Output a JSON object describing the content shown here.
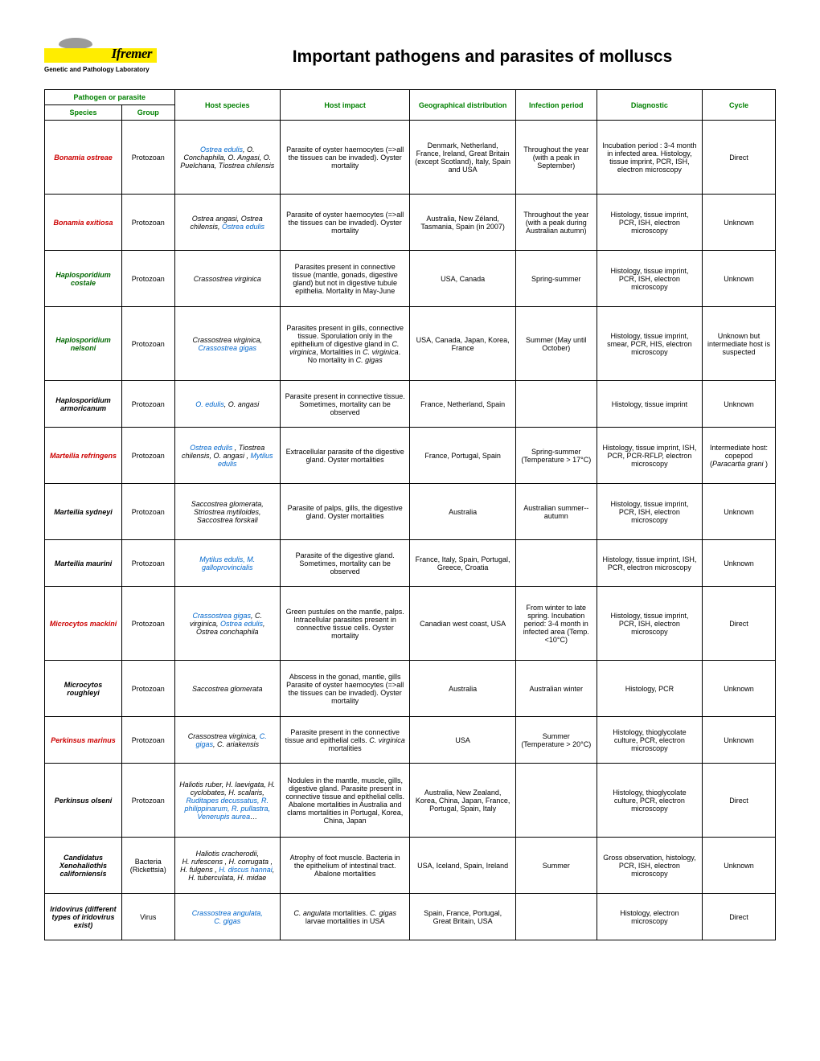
{
  "logo": {
    "brand": "Ifremer",
    "subline": "Genetic and Pathology Laboratory"
  },
  "title": "Important pathogens and parasites of molluscs",
  "headers": {
    "pathogen": "Pathogen or parasite",
    "species": "Species",
    "group": "Group",
    "host_species": "Host species",
    "host_impact": "Host impact",
    "geo": "Geographical distribution",
    "period": "Infection period",
    "diagnostic": "Diagnostic",
    "cycle": "Cycle"
  },
  "rows": [
    {
      "species": "Bonamia ostreae",
      "species_color": "red",
      "group": "Protozoan",
      "host_html": "<span class='lk'>Ostrea edulis</span><span class='it'>, O. Conchaphila, O. Angasi, O. Puelchana, Tiostrea chilensis</span>",
      "impact": "Parasite of oyster haemocytes (=>all the tissues can be invaded). Oyster mortality",
      "geo": "Denmark, Netherland, France, Ireland, Great Britain (except Scotland), Italy, Spain and USA",
      "period": "Throughout the year (with a peak in September)",
      "diagnostic": "Incubation period : 3-4 month in infected area. Histology, tissue imprint, PCR, ISH, electron microscopy",
      "cycle": "Direct",
      "row_h": "h-lg"
    },
    {
      "species": "Bonamia exitiosa",
      "species_color": "red",
      "group": "Protozoan",
      "host_html": "<span class='it'>Ostrea angasi, Ostrea chilensis, </span><span class='lk'>Ostrea edulis</span>",
      "impact": "Parasite of oyster haemocytes (=>all the tissues can be invaded). Oyster mortality",
      "geo": "Australia, New Zéland, Tasmania, Spain (in 2007)",
      "period": "Throughout the year (with a peak during Australian autumn)",
      "diagnostic": "Histology, tissue imprint, PCR, ISH, electron microscopy",
      "cycle": "Unknown",
      "row_h": ""
    },
    {
      "species": "Haplosporidium costale",
      "species_color": "green",
      "group": "Protozoan",
      "host_html": "<span class='it'>Crassostrea virginica</span>",
      "impact": "Parasites present in connective tissue (mantle, gonads, digestive gland) but not in digestive tubule epithelia. Mortality in May-June",
      "geo": "USA, Canada",
      "period": "Spring-summer",
      "diagnostic": "Histology, tissue imprint, PCR, ISH, electron microscopy",
      "cycle": "Unknown",
      "row_h": ""
    },
    {
      "species": "Haplosporidium nelsoni",
      "species_color": "green",
      "group": "Protozoan",
      "host_html": "<span class='it'>Crassostrea virginica, </span><span class='lk'>Crassostrea gigas</span>",
      "impact_html": "Parasites present in gills, connective tissue. Sporulation only in the epithelium of digestive gland in <span class='it'>C. virginica</span>, Mortalities in <span class='it'>C. virginica</span>. No mortality in <span class='it'>C. gigas</span>",
      "geo": "USA, Canada, Japan, Korea, France",
      "period": "Summer (May until October)",
      "diagnostic": "Histology, tissue imprint, smear, PCR, HIS, electron microscopy",
      "cycle": "Unknown but intermediate host is suspected",
      "row_h": "h-lg"
    },
    {
      "species": "Haplosporidium armoricanum",
      "species_color": "black",
      "group": "Protozoan",
      "host_html": "<span class='lk'>O. edulis</span><span class='it'>, O. angasi</span>",
      "impact": "Parasite present in connective tissue. Sometimes, mortality can be observed",
      "geo": "France, Netherland, Spain",
      "period": "",
      "diagnostic": "Histology, tissue imprint",
      "cycle": "Unknown",
      "row_h": "h-sm"
    },
    {
      "species": "Marteilia refringens",
      "species_color": "red",
      "group": "Protozoan",
      "host_html": "<span class='lk'>Ostrea edulis</span><span class='it'> , Tiostrea chilensis, O. angasi , </span><span class='lk'>Mytilus edulis</span>",
      "impact": "Extracellular parasite of the digestive gland. Oyster mortalities",
      "geo": "France, Portugal, Spain",
      "period": "Spring-summer (Temperature > 17°C)",
      "diagnostic": "Histology, tissue imprint, ISH, PCR, PCR-RFLP, electron microscopy",
      "cycle_html": "Intermediate host: copepod (<span class='it'>Paracartia grani</span> )",
      "row_h": ""
    },
    {
      "species": "Marteilia sydneyi",
      "species_color": "black",
      "group": "Protozoan",
      "host_html": "<span class='it'>Saccostrea glomerata, Striostrea mytiloides, Saccostrea forskali</span>",
      "impact": "Parasite of palps, gills, the digestive gland. Oyster mortalities",
      "geo": "Australia",
      "period": "Australian summer-- autumn",
      "diagnostic": "Histology, tissue imprint, PCR, ISH, electron microscopy",
      "cycle": "Unknown",
      "row_h": ""
    },
    {
      "species": "Marteilia maurini",
      "species_color": "black",
      "group": "Protozoan",
      "host_html": "<span class='lk'>Mytilus edulis, M. galloprovincialis</span>",
      "impact": "Parasite of the digestive gland. Sometimes, mortality can be observed",
      "geo": "France, Italy, Spain, Portugal, Greece, Croatia",
      "period": "",
      "diagnostic": "Histology, tissue imprint, ISH, PCR, electron microscopy",
      "cycle": "Unknown",
      "row_h": "h-sm"
    },
    {
      "species": "Microcytos mackini",
      "species_color": "red",
      "group": "Protozoan",
      "host_html": "<span class='lk'>Crassostrea gigas</span><span class='it'>, C. virginica, </span><span class='lk'>Ostrea edulis</span><span class='it'>, Ostrea conchaphila</span>",
      "impact": "Green pustules on the mantle, palps. Intracellular parasites present in connective tissue cells. Oyster mortality",
      "geo": "Canadian west coast, USA",
      "period": "From winter to late spring. Incubation period: 3-4 month in infected area (Temp. <10°C)",
      "diagnostic": "Histology, tissue imprint, PCR, ISH, electron microscopy",
      "cycle": "Direct",
      "row_h": "h-lg"
    },
    {
      "species": "Microcytos roughleyi",
      "species_color": "black",
      "group": "Protozoan",
      "host_html": "<span class='it'>Saccostrea glomerata</span>",
      "impact": "Abscess in the gonad, mantle, gills Parasite of oyster haemocytes (=>all the tissues can be invaded). Oyster mortality",
      "geo": "Australia",
      "period": "Australian winter",
      "diagnostic": "Histology, PCR",
      "cycle": "Unknown",
      "row_h": ""
    },
    {
      "species": "Perkinsus marinus",
      "species_color": "red",
      "group": "Protozoan",
      "host_html": "<span class='it'>Crassostrea virginica, </span><span class='lk'>C. gigas</span><span class='it'>, C. ariakensis</span>",
      "impact_html": "Parasite present in the connective tissue and epithelial cells. <span class='it'>C. virginica</span> mortalities",
      "geo": "USA",
      "period": "Summer (Temperature > 20°C)",
      "diagnostic": "Histology, thioglycolate culture, PCR, electron microscopy",
      "cycle": "Unknown",
      "row_h": "h-sm"
    },
    {
      "species": "Perkinsus olseni",
      "species_color": "black",
      "group": "Protozoan",
      "host_html": "<span class='it'>Haliotis ruber, H. laevigata, H. cyclobates, H. scalaris, </span><span class='lk'>Ruditapes decussatus, R. philippinarum, R. pullastra, Venerupis aurea</span><span class='it'>…</span>",
      "impact": "Nodules in the mantle, muscle, gills, digestive gland. Parasite present in connective tissue and epithelial cells. Abalone mortalities in Australia and clams mortalities in Portugal, Korea, China, Japan",
      "geo": "Australia, New Zealand, Korea, China, Japan, France, Portugal, Spain, Italy",
      "period": "",
      "diagnostic": "Histology, thioglycolate culture, PCR, electron microscopy",
      "cycle": "Direct",
      "row_h": "h-lg"
    },
    {
      "species_html": "<span class='it'>Candidatus</span> Xenohaliothis californiensis",
      "species_color": "black",
      "group": "Bacteria (Rickettsia)",
      "host_html": "<span class='it'>Haliotis cracherodii, H. rufescens , H. corrugata , H. fulgens , </span><span class='lk'>H. discus hannai</span><span class='it'>, H. tuberculata, H. midae</span>",
      "impact": "Atrophy of foot muscle. Bacteria in the epithelium of intestinal tract. Abalone mortalities",
      "geo": "USA, Iceland, Spain, Ireland",
      "period": "Summer",
      "diagnostic": "Gross observation, histology, PCR, ISH, electron microscopy",
      "cycle": "Unknown",
      "row_h": ""
    },
    {
      "species_html": "<span class='it'>Iridovirus</span> (different types of iridovirus exist)",
      "species_color": "black",
      "group": "Virus",
      "host_html": "<span class='lk'>Crassostrea angulata, C. gigas</span>",
      "impact_html": "<span class='it'>C. angulata</span> mortalities. <span class='it'>C. gigas</span> larvae mortalities in USA",
      "geo": "Spain, France, Portugal, Great Britain, USA",
      "period": "",
      "diagnostic": "Histology, electron microscopy",
      "cycle": "Direct",
      "row_h": "h-sm"
    }
  ]
}
